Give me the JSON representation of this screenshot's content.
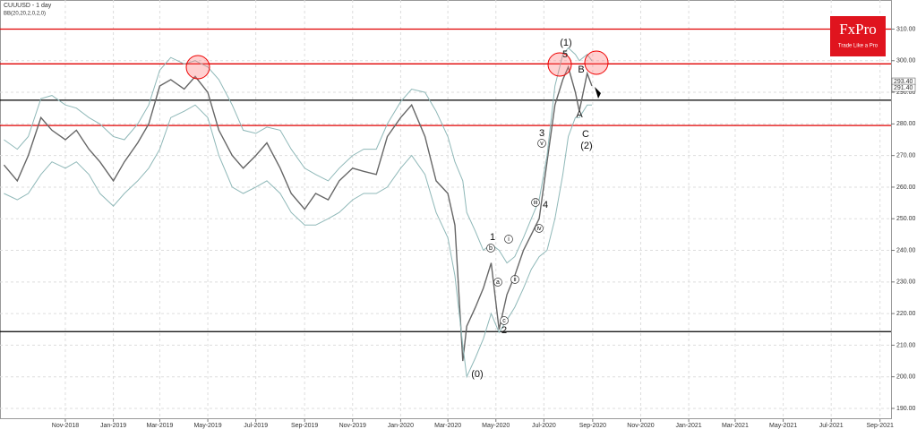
{
  "chart_data": {
    "type": "line",
    "title": "CUUUSD - 1 day",
    "subtitle": "BB(20,20,2,0,2,0)",
    "logo": {
      "name": "FxPro",
      "tagline": "Trade Like a Pro"
    },
    "x": [
      "2018-08-15",
      "2018-09-01",
      "2018-09-15",
      "2018-10-01",
      "2018-10-15",
      "2018-11-01",
      "2018-11-15",
      "2018-12-01",
      "2018-12-15",
      "2019-01-01",
      "2019-01-15",
      "2019-02-01",
      "2019-02-15",
      "2019-03-01",
      "2019-03-15",
      "2019-04-01",
      "2019-04-15",
      "2019-05-01",
      "2019-05-15",
      "2019-06-01",
      "2019-06-15",
      "2019-07-01",
      "2019-07-15",
      "2019-08-01",
      "2019-08-15",
      "2019-09-01",
      "2019-09-15",
      "2019-10-01",
      "2019-10-15",
      "2019-11-01",
      "2019-11-15",
      "2019-12-01",
      "2019-12-15",
      "2020-01-01",
      "2020-01-15",
      "2020-02-01",
      "2020-02-15",
      "2020-03-01",
      "2020-03-10",
      "2020-03-20",
      "2020-03-25",
      "2020-04-05",
      "2020-04-15",
      "2020-04-25",
      "2020-05-05",
      "2020-05-15",
      "2020-05-25",
      "2020-06-05",
      "2020-06-15",
      "2020-06-25",
      "2020-07-05",
      "2020-07-15",
      "2020-07-25",
      "2020-08-01",
      "2020-08-10",
      "2020-08-15",
      "2020-08-25",
      "2020-08-31"
    ],
    "series": [
      {
        "name": "CUUUSD",
        "color": "#666666",
        "values": [
          267,
          262,
          270,
          282,
          278,
          275,
          278,
          272,
          268,
          262,
          268,
          274,
          280,
          292,
          294,
          291,
          295,
          290,
          278,
          270,
          266,
          270,
          274,
          266,
          258,
          253,
          258,
          256,
          262,
          266,
          265,
          264,
          276,
          282,
          286,
          276,
          262,
          258,
          248,
          205,
          216,
          222,
          228,
          236,
          215,
          226,
          232,
          240,
          245,
          250,
          268,
          286,
          294,
          298,
          290,
          284,
          296,
          292
        ]
      },
      {
        "name": "BB upper",
        "color": "#8fb8b8",
        "values": [
          275,
          272,
          276,
          288,
          289,
          286,
          285,
          282,
          280,
          276,
          275,
          280,
          286,
          297,
          301,
          299,
          300,
          298,
          294,
          286,
          278,
          277,
          279,
          278,
          272,
          266,
          264,
          262,
          266,
          270,
          272,
          272,
          280,
          287,
          291,
          290,
          284,
          276,
          268,
          262,
          252,
          246,
          240,
          242,
          240,
          236,
          238,
          244,
          250,
          256,
          270,
          292,
          302,
          304,
          302,
          300,
          302,
          300
        ]
      },
      {
        "name": "BB lower",
        "color": "#8fb8b8",
        "values": [
          258,
          256,
          258,
          264,
          268,
          266,
          268,
          264,
          258,
          254,
          258,
          262,
          266,
          272,
          282,
          284,
          286,
          282,
          270,
          260,
          258,
          260,
          262,
          258,
          252,
          248,
          248,
          250,
          252,
          256,
          258,
          258,
          260,
          266,
          270,
          264,
          252,
          244,
          232,
          210,
          200,
          206,
          212,
          220,
          214,
          218,
          222,
          228,
          234,
          238,
          240,
          250,
          264,
          276,
          282,
          282,
          286,
          286
        ]
      }
    ],
    "levels": [
      {
        "value": 310,
        "color": "#e00000"
      },
      {
        "value": 299,
        "color": "#e00000"
      },
      {
        "value": 287.5,
        "color": "#000000"
      },
      {
        "value": 279.5,
        "color": "#e00000"
      },
      {
        "value": 214.3,
        "color": "#000000"
      }
    ],
    "price_tags": [
      {
        "value": 293.4,
        "label": "293.40"
      },
      {
        "value": 291.4,
        "label": "291.40"
      }
    ],
    "annotations": [
      "(1)",
      "5",
      "B",
      "A",
      "C",
      "(2)",
      "3",
      "4",
      "1",
      "2",
      "(0)",
      "v",
      "iii",
      "iv",
      "i",
      "ii",
      "a",
      "b",
      "c"
    ],
    "xlim": [
      "2018-08-10",
      "2021-09-15"
    ],
    "xticks": [
      {
        "value": "2018-11-01",
        "label": "Nov-2018"
      },
      {
        "value": "2019-01-01",
        "label": "Jan-2019"
      },
      {
        "value": "2019-03-01",
        "label": "Mar-2019"
      },
      {
        "value": "2019-05-01",
        "label": "May-2019"
      },
      {
        "value": "2019-07-01",
        "label": "Jul-2019"
      },
      {
        "value": "2019-09-01",
        "label": "Sep-2019"
      },
      {
        "value": "2019-11-01",
        "label": "Nov-2019"
      },
      {
        "value": "2020-01-01",
        "label": "Jan-2020"
      },
      {
        "value": "2020-03-01",
        "label": "Mar-2020"
      },
      {
        "value": "2020-05-01",
        "label": "May-2020"
      },
      {
        "value": "2020-07-01",
        "label": "Jul-2020"
      },
      {
        "value": "2020-09-01",
        "label": "Sep-2020"
      },
      {
        "value": "2020-11-01",
        "label": "Nov-2020"
      },
      {
        "value": "2021-01-01",
        "label": "Jan-2021"
      },
      {
        "value": "2021-03-01",
        "label": "Mar-2021"
      },
      {
        "value": "2021-05-01",
        "label": "May-2021"
      },
      {
        "value": "2021-07-01",
        "label": "Jul-2021"
      },
      {
        "value": "2021-09-01",
        "label": "Sep-2021"
      }
    ],
    "ylim": [
      186.6,
      319.2
    ],
    "yticks": [
      {
        "value": 190,
        "label": "190.00"
      },
      {
        "value": 200,
        "label": "200.00"
      },
      {
        "value": 210,
        "label": "210.00"
      },
      {
        "value": 220,
        "label": "220.00"
      },
      {
        "value": 230,
        "label": "230.00"
      },
      {
        "value": 240,
        "label": "240.00"
      },
      {
        "value": 250,
        "label": "250.00"
      },
      {
        "value": 260,
        "label": "260.00"
      },
      {
        "value": 270,
        "label": "270.00"
      },
      {
        "value": 280,
        "label": "280.00"
      },
      {
        "value": 290,
        "label": "290.00"
      },
      {
        "value": 300,
        "label": "300.00"
      },
      {
        "value": 310,
        "label": "310.00"
      }
    ],
    "grid": true
  }
}
